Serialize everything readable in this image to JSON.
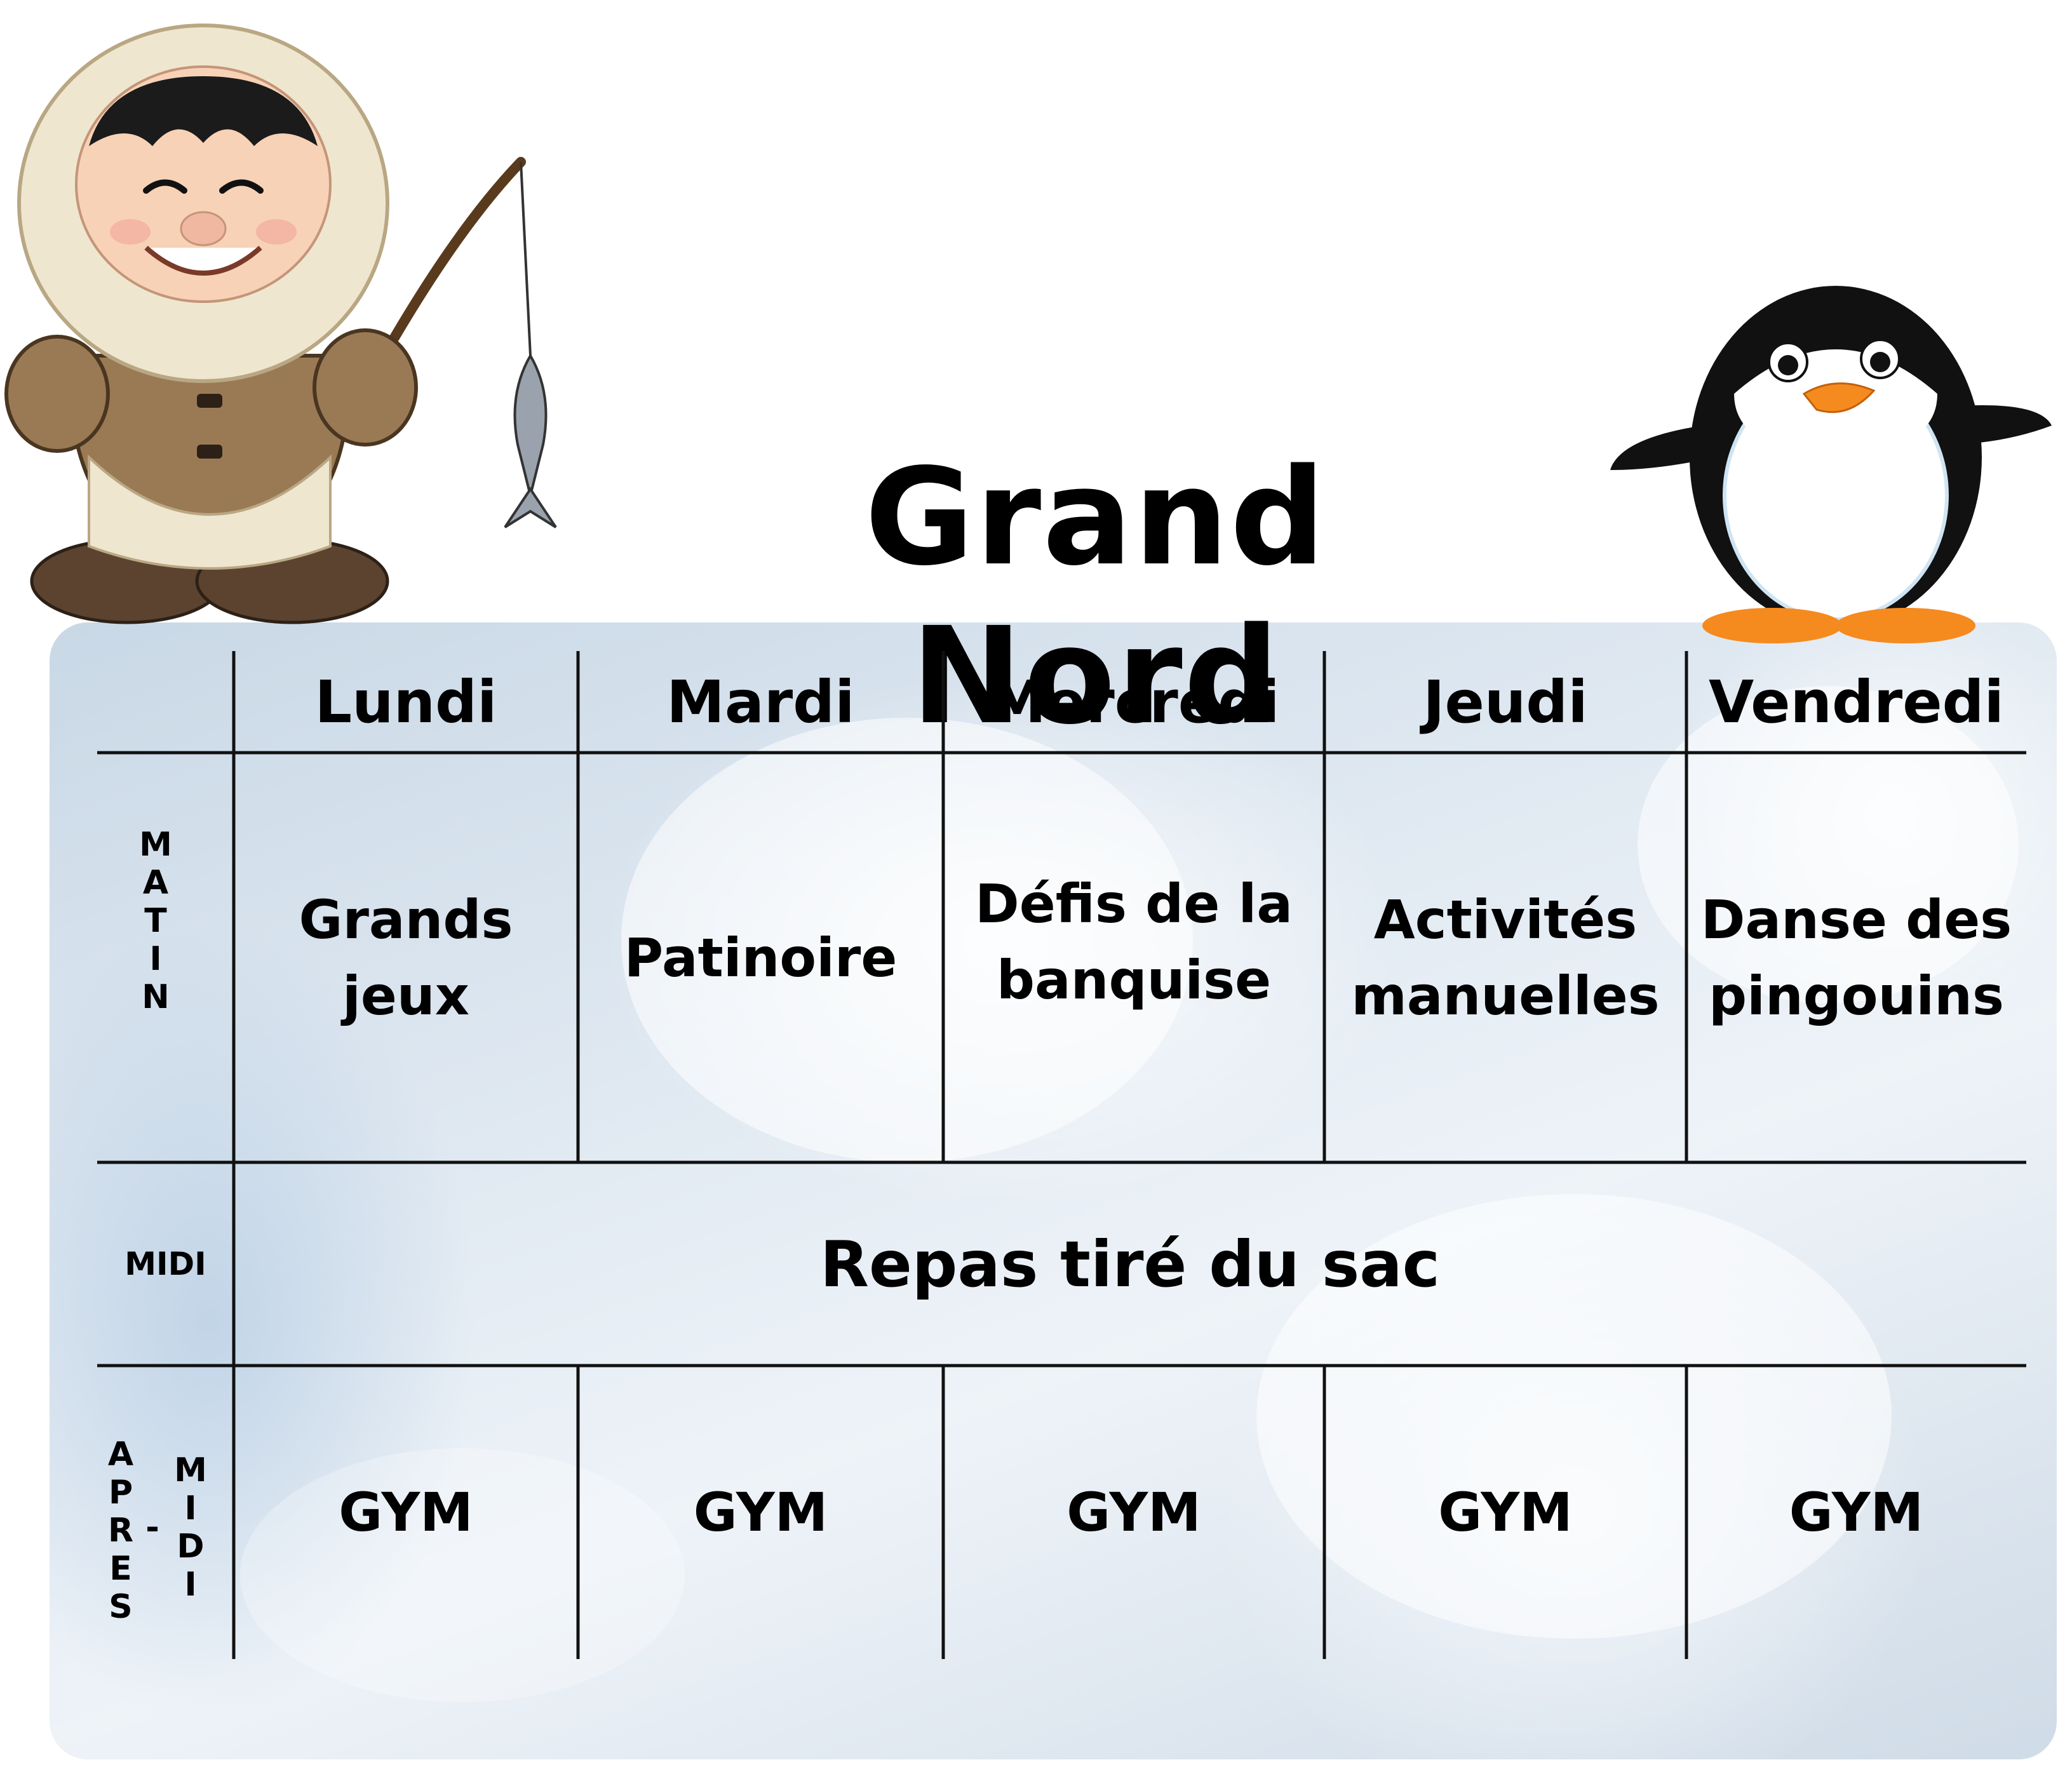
{
  "title": "Grand Nord",
  "days": [
    "Lundi",
    "Mardi",
    "Mercredi",
    "Jeudi",
    "Vendredi"
  ],
  "rows": {
    "matin": {
      "label_letters": [
        "M",
        "A",
        "T",
        "I",
        "N"
      ],
      "activities": [
        [
          "Grands jeux"
        ],
        [
          "Patinoire"
        ],
        [
          "Défis de la",
          "banquise"
        ],
        [
          "Activités",
          "manuelles"
        ],
        [
          "Danse des",
          "pingouins"
        ]
      ]
    },
    "midi": {
      "label": "MIDI",
      "activity": "Repas tiré du sac"
    },
    "apres_midi": {
      "label_left_letters": [
        "A",
        "P",
        "R",
        "E",
        "S"
      ],
      "label_separator": "-",
      "label_right_letters": [
        "M",
        "I",
        "D",
        "I"
      ],
      "activities": [
        "GYM",
        "GYM",
        "GYM",
        "GYM",
        "GYM"
      ]
    }
  },
  "illustrations": {
    "left": "inuit-child-fishing-icon",
    "right": "penguin-icon"
  },
  "colors": {
    "text": "#000000",
    "panel_light": "#eef3f8",
    "panel_dark": "#c9d8e6"
  }
}
